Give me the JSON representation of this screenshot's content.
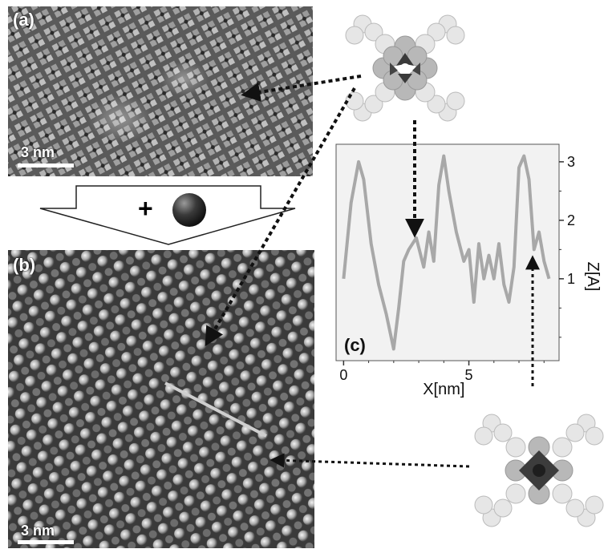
{
  "panel_a": {
    "label": "(a)",
    "scale_label": "3 nm"
  },
  "panel_b": {
    "label": "(b)",
    "scale_label": "3 nm"
  },
  "reaction_arrow": {
    "symbol": "+"
  },
  "chart_data": {
    "type": "line",
    "panel_label": "(c)",
    "xlabel": "X[nm]",
    "ylabel": "Z[A]",
    "x_ticks": [
      "0",
      "5"
    ],
    "y_ticks": [
      "1",
      "2",
      "3"
    ],
    "xlim": [
      -0.3,
      8.6
    ],
    "ylim": [
      -0.4,
      3.3
    ],
    "grid": false,
    "series_color": "#a8a8a8",
    "x": [
      0.0,
      0.3,
      0.6,
      0.8,
      1.1,
      1.4,
      1.7,
      2.0,
      2.2,
      2.4,
      2.6,
      2.9,
      3.2,
      3.4,
      3.6,
      3.8,
      4.0,
      4.2,
      4.5,
      4.8,
      5.0,
      5.2,
      5.4,
      5.6,
      5.8,
      6.0,
      6.2,
      6.4,
      6.6,
      6.8,
      7.0,
      7.2,
      7.4,
      7.6,
      7.8,
      8.0,
      8.2
    ],
    "y": [
      1.0,
      2.3,
      3.0,
      2.7,
      1.6,
      0.9,
      0.4,
      -0.2,
      0.5,
      1.3,
      1.5,
      1.7,
      1.2,
      1.8,
      1.3,
      2.6,
      3.1,
      2.5,
      1.8,
      1.3,
      1.5,
      0.6,
      1.6,
      1.0,
      1.4,
      1.0,
      1.6,
      0.9,
      0.6,
      1.2,
      2.9,
      3.1,
      2.7,
      1.5,
      1.8,
      1.3,
      1.0
    ]
  }
}
